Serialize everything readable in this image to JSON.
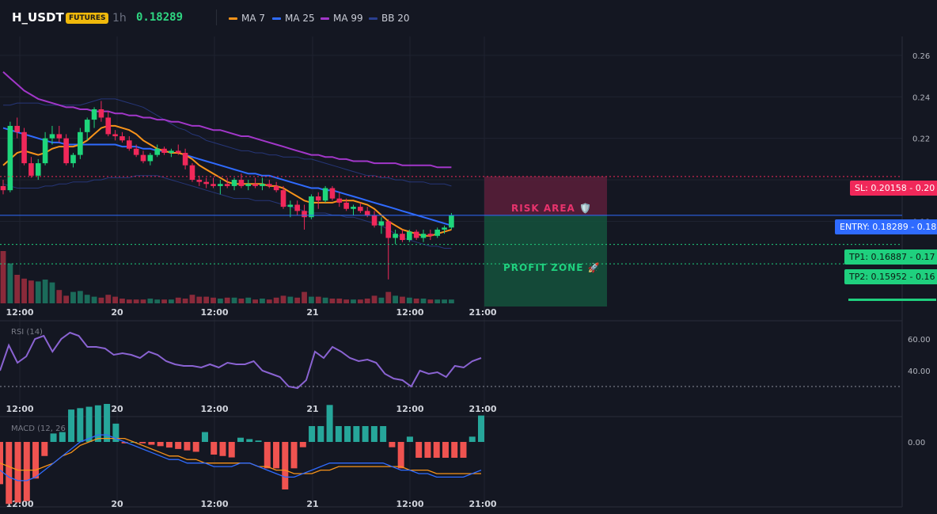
{
  "header": {
    "symbol": "H_USDT",
    "badge": "FUTURES",
    "timeframe": "1h",
    "price": "0.18289",
    "indicators": [
      {
        "label": "MA 7",
        "color": "#f7931a"
      },
      {
        "label": "MA 25",
        "color": "#2f6bff"
      },
      {
        "label": "MA 99",
        "color": "#a237c9"
      },
      {
        "label": "BB 20",
        "color": "#2a3f8f"
      }
    ]
  },
  "colors": {
    "up": "#1ed67b",
    "down": "#f0285a",
    "vol_up": "#1b6b5a",
    "vol_down": "#8a2a3a",
    "ma7": "#f7931a",
    "ma25": "#2f6bff",
    "ma99": "#a237c9",
    "bb": "#2a3f8f",
    "rsi": "#8a63d2",
    "macd": "#2f6bff",
    "signal": "#f7931a",
    "hist_up": "#26a69a",
    "hist_down": "#ef5350"
  },
  "levels": {
    "sl_label": "SL: 0.20158",
    "sl_axis": "0.20",
    "entry_label": "ENTRY: 0.18289",
    "entry_axis": "0.18",
    "tp1_label": "TP1: 0.16887",
    "tp1_axis": "0.17",
    "tp2_label": "TP2: 0.15952",
    "tp2_axis": "0.16"
  },
  "zones": {
    "risk_label": "RISK AREA 🛡️",
    "profit_label": "PROFIT ZONE 🚀"
  },
  "panels": {
    "rsi_label": "RSI (14)",
    "rsi_ticks": [
      "60.00",
      "40.00"
    ],
    "macd_label": "MACD (12, 26",
    "macd_ticks": [
      "0.00"
    ]
  },
  "chart_data": {
    "type": "candlestick",
    "timeframe": "1h",
    "x_ticks": [
      "12:00",
      "20",
      "12:00",
      "21",
      "12:00",
      "21:00"
    ],
    "y_ticks": [
      0.26,
      0.24,
      0.22,
      0.18
    ],
    "ylim": [
      0.145,
      0.27
    ],
    "candles": [
      [
        0.197,
        0.2,
        0.193,
        0.195
      ],
      [
        0.195,
        0.228,
        0.194,
        0.226
      ],
      [
        0.226,
        0.23,
        0.22,
        0.223
      ],
      [
        0.223,
        0.225,
        0.207,
        0.208
      ],
      [
        0.208,
        0.211,
        0.201,
        0.202
      ],
      [
        0.202,
        0.21,
        0.2,
        0.208
      ],
      [
        0.208,
        0.223,
        0.207,
        0.22
      ],
      [
        0.22,
        0.226,
        0.217,
        0.222
      ],
      [
        0.222,
        0.226,
        0.218,
        0.22
      ],
      [
        0.22,
        0.222,
        0.207,
        0.208
      ],
      [
        0.208,
        0.213,
        0.206,
        0.212
      ],
      [
        0.212,
        0.225,
        0.21,
        0.223
      ],
      [
        0.223,
        0.23,
        0.219,
        0.229
      ],
      [
        0.229,
        0.235,
        0.225,
        0.234
      ],
      [
        0.234,
        0.238,
        0.228,
        0.23
      ],
      [
        0.23,
        0.233,
        0.221,
        0.222
      ],
      [
        0.222,
        0.224,
        0.219,
        0.221
      ],
      [
        0.221,
        0.223,
        0.218,
        0.219
      ],
      [
        0.219,
        0.221,
        0.214,
        0.215
      ],
      [
        0.215,
        0.217,
        0.211,
        0.212
      ],
      [
        0.212,
        0.214,
        0.208,
        0.209
      ],
      [
        0.209,
        0.213,
        0.207,
        0.212
      ],
      [
        0.212,
        0.217,
        0.211,
        0.215
      ],
      [
        0.215,
        0.216,
        0.212,
        0.213
      ],
      [
        0.213,
        0.215,
        0.211,
        0.214
      ],
      [
        0.214,
        0.217,
        0.212,
        0.213
      ],
      [
        0.213,
        0.215,
        0.205,
        0.207
      ],
      [
        0.207,
        0.208,
        0.199,
        0.2
      ],
      [
        0.2,
        0.202,
        0.197,
        0.199
      ],
      [
        0.199,
        0.201,
        0.196,
        0.198
      ],
      [
        0.198,
        0.201,
        0.196,
        0.197
      ],
      [
        0.197,
        0.2,
        0.193,
        0.198
      ],
      [
        0.198,
        0.201,
        0.196,
        0.197
      ],
      [
        0.197,
        0.201,
        0.195,
        0.2
      ],
      [
        0.2,
        0.203,
        0.196,
        0.197
      ],
      [
        0.197,
        0.2,
        0.195,
        0.198
      ],
      [
        0.198,
        0.201,
        0.196,
        0.197
      ],
      [
        0.197,
        0.201,
        0.195,
        0.198
      ],
      [
        0.198,
        0.2,
        0.196,
        0.197
      ],
      [
        0.197,
        0.199,
        0.194,
        0.195
      ],
      [
        0.195,
        0.197,
        0.186,
        0.187
      ],
      [
        0.187,
        0.19,
        0.182,
        0.188
      ],
      [
        0.188,
        0.19,
        0.183,
        0.185
      ],
      [
        0.185,
        0.188,
        0.176,
        0.182
      ],
      [
        0.182,
        0.193,
        0.181,
        0.192
      ],
      [
        0.192,
        0.194,
        0.186,
        0.19
      ],
      [
        0.19,
        0.197,
        0.189,
        0.196
      ],
      [
        0.196,
        0.197,
        0.19,
        0.191
      ],
      [
        0.191,
        0.194,
        0.187,
        0.189
      ],
      [
        0.189,
        0.191,
        0.185,
        0.186
      ],
      [
        0.186,
        0.188,
        0.183,
        0.187
      ],
      [
        0.187,
        0.189,
        0.184,
        0.185
      ],
      [
        0.185,
        0.187,
        0.182,
        0.183
      ],
      [
        0.183,
        0.185,
        0.177,
        0.178
      ],
      [
        0.178,
        0.182,
        0.174,
        0.18
      ],
      [
        0.18,
        0.181,
        0.152,
        0.172
      ],
      [
        0.172,
        0.176,
        0.169,
        0.174
      ],
      [
        0.174,
        0.176,
        0.17,
        0.171
      ],
      [
        0.171,
        0.176,
        0.17,
        0.175
      ],
      [
        0.175,
        0.176,
        0.171,
        0.172
      ],
      [
        0.172,
        0.176,
        0.17,
        0.174
      ],
      [
        0.174,
        0.176,
        0.171,
        0.173
      ],
      [
        0.173,
        0.177,
        0.172,
        0.176
      ],
      [
        0.176,
        0.178,
        0.174,
        0.177
      ],
      [
        0.177,
        0.184,
        0.176,
        0.183
      ]
    ],
    "volume": [
      55,
      42,
      30,
      26,
      24,
      23,
      25,
      22,
      14,
      8,
      12,
      13,
      9,
      7,
      6,
      9,
      7,
      5,
      4,
      4,
      4,
      5,
      4,
      4,
      4,
      6,
      5,
      9,
      7,
      7,
      6,
      5,
      6,
      6,
      5,
      6,
      4,
      5,
      4,
      6,
      8,
      7,
      6,
      12,
      7,
      7,
      6,
      5,
      5,
      4,
      4,
      4,
      5,
      8,
      6,
      12,
      8,
      7,
      6,
      5,
      5,
      4,
      4,
      4,
      4
    ],
    "ma7": [
      0.207,
      0.21,
      0.213,
      0.214,
      0.213,
      0.212,
      0.213,
      0.215,
      0.216,
      0.216,
      0.216,
      0.217,
      0.219,
      0.222,
      0.225,
      0.226,
      0.226,
      0.225,
      0.224,
      0.222,
      0.219,
      0.217,
      0.215,
      0.214,
      0.213,
      0.213,
      0.212,
      0.21,
      0.207,
      0.205,
      0.203,
      0.201,
      0.199,
      0.198,
      0.198,
      0.198,
      0.198,
      0.198,
      0.197,
      0.197,
      0.196,
      0.194,
      0.192,
      0.19,
      0.189,
      0.189,
      0.189,
      0.189,
      0.19,
      0.19,
      0.19,
      0.189,
      0.188,
      0.186,
      0.183,
      0.18,
      0.178,
      0.176,
      0.175,
      0.174,
      0.173,
      0.173,
      0.174,
      0.175,
      0.176
    ],
    "ma25": [
      0.225,
      0.224,
      0.223,
      0.222,
      0.221,
      0.22,
      0.219,
      0.218,
      0.218,
      0.217,
      0.217,
      0.217,
      0.217,
      0.217,
      0.217,
      0.217,
      0.217,
      0.216,
      0.216,
      0.216,
      0.215,
      0.215,
      0.214,
      0.214,
      0.213,
      0.213,
      0.212,
      0.211,
      0.21,
      0.209,
      0.208,
      0.207,
      0.206,
      0.205,
      0.204,
      0.203,
      0.203,
      0.202,
      0.202,
      0.201,
      0.2,
      0.199,
      0.198,
      0.197,
      0.196,
      0.196,
      0.195,
      0.195,
      0.194,
      0.193,
      0.192,
      0.191,
      0.19,
      0.189,
      0.188,
      0.187,
      0.186,
      0.185,
      0.184,
      0.183,
      0.182,
      0.181,
      0.18,
      0.179,
      0.178
    ],
    "ma99": [
      0.252,
      0.249,
      0.246,
      0.243,
      0.241,
      0.239,
      0.238,
      0.237,
      0.236,
      0.235,
      0.235,
      0.234,
      0.234,
      0.233,
      0.233,
      0.233,
      0.232,
      0.232,
      0.231,
      0.231,
      0.23,
      0.23,
      0.229,
      0.229,
      0.228,
      0.228,
      0.227,
      0.226,
      0.226,
      0.225,
      0.224,
      0.224,
      0.223,
      0.222,
      0.221,
      0.221,
      0.22,
      0.219,
      0.218,
      0.217,
      0.216,
      0.215,
      0.214,
      0.213,
      0.212,
      0.212,
      0.211,
      0.211,
      0.21,
      0.21,
      0.209,
      0.209,
      0.209,
      0.208,
      0.208,
      0.208,
      0.208,
      0.207,
      0.207,
      0.207,
      0.207,
      0.207,
      0.206,
      0.206,
      0.206
    ],
    "bb_upper": [
      0.236,
      0.236,
      0.237,
      0.237,
      0.237,
      0.237,
      0.236,
      0.236,
      0.236,
      0.236,
      0.236,
      0.236,
      0.237,
      0.238,
      0.239,
      0.239,
      0.239,
      0.238,
      0.237,
      0.236,
      0.235,
      0.233,
      0.231,
      0.229,
      0.227,
      0.225,
      0.224,
      0.222,
      0.221,
      0.219,
      0.218,
      0.217,
      0.216,
      0.215,
      0.214,
      0.214,
      0.213,
      0.213,
      0.212,
      0.212,
      0.211,
      0.211,
      0.211,
      0.21,
      0.21,
      0.209,
      0.208,
      0.207,
      0.206,
      0.205,
      0.204,
      0.203,
      0.202,
      0.202,
      0.201,
      0.201,
      0.2,
      0.2,
      0.199,
      0.199,
      0.199,
      0.198,
      0.198,
      0.198,
      0.197
    ],
    "bb_lower": [
      0.198,
      0.197,
      0.196,
      0.196,
      0.196,
      0.196,
      0.197,
      0.197,
      0.198,
      0.198,
      0.199,
      0.199,
      0.199,
      0.2,
      0.2,
      0.201,
      0.201,
      0.201,
      0.201,
      0.202,
      0.202,
      0.202,
      0.202,
      0.201,
      0.2,
      0.199,
      0.198,
      0.197,
      0.196,
      0.195,
      0.194,
      0.193,
      0.192,
      0.191,
      0.191,
      0.191,
      0.19,
      0.19,
      0.19,
      0.189,
      0.188,
      0.187,
      0.186,
      0.185,
      0.184,
      0.184,
      0.184,
      0.183,
      0.183,
      0.182,
      0.182,
      0.181,
      0.18,
      0.179,
      0.178,
      0.176,
      0.174,
      0.172,
      0.171,
      0.17,
      0.169,
      0.168,
      0.168,
      0.167,
      0.167
    ],
    "rsi": [
      40,
      56,
      45,
      49,
      60,
      62,
      52,
      60,
      64,
      62,
      55,
      55,
      54,
      50,
      51,
      50,
      48,
      52,
      50,
      46,
      44,
      43,
      43,
      42,
      44,
      42,
      45,
      44,
      44,
      46,
      40,
      38,
      36,
      30,
      29,
      34,
      52,
      48,
      55,
      52,
      48,
      46,
      47,
      45,
      38,
      35,
      34,
      30,
      40,
      38,
      39,
      36,
      43,
      42,
      46,
      48
    ],
    "rsi_ylim": [
      20,
      70
    ],
    "macd": [
      -0.008,
      -0.01,
      -0.011,
      -0.011,
      -0.01,
      -0.008,
      -0.006,
      -0.004,
      -0.002,
      0.0,
      0.001,
      0.002,
      0.002,
      0.001,
      0.0,
      -0.001,
      -0.002,
      -0.003,
      -0.004,
      -0.005,
      -0.005,
      -0.006,
      -0.006,
      -0.006,
      -0.007,
      -0.007,
      -0.007,
      -0.006,
      -0.006,
      -0.007,
      -0.008,
      -0.009,
      -0.01,
      -0.01,
      -0.009,
      -0.008,
      -0.007,
      -0.006,
      -0.006,
      -0.006,
      -0.006,
      -0.006,
      -0.006,
      -0.006,
      -0.007,
      -0.008,
      -0.008,
      -0.009,
      -0.009,
      -0.01,
      -0.01,
      -0.01,
      -0.01,
      -0.009,
      -0.008
    ],
    "signal": [
      -0.006,
      -0.007,
      -0.008,
      -0.008,
      -0.008,
      -0.007,
      -0.006,
      -0.004,
      -0.003,
      -0.001,
      0.0,
      0.001,
      0.001,
      0.001,
      0.001,
      0.0,
      -0.001,
      -0.002,
      -0.003,
      -0.004,
      -0.004,
      -0.005,
      -0.005,
      -0.006,
      -0.006,
      -0.006,
      -0.006,
      -0.006,
      -0.006,
      -0.007,
      -0.007,
      -0.008,
      -0.008,
      -0.009,
      -0.009,
      -0.009,
      -0.008,
      -0.008,
      -0.007,
      -0.007,
      -0.007,
      -0.007,
      -0.007,
      -0.007,
      -0.007,
      -0.007,
      -0.008,
      -0.008,
      -0.008,
      -0.009,
      -0.009,
      -0.009,
      -0.009,
      -0.009,
      -0.009
    ],
    "macd_ylim": [
      -0.013,
      0.004
    ]
  }
}
